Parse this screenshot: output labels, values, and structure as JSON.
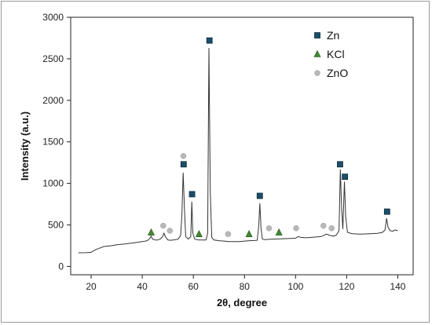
{
  "chart_data": {
    "type": "line",
    "title": "",
    "xlabel": "2θ, degree",
    "ylabel": "Intensity (a.u.)",
    "xlim": [
      12,
      146
    ],
    "ylim": [
      -100,
      3000
    ],
    "x_ticks": [
      20,
      40,
      60,
      80,
      100,
      120,
      140
    ],
    "y_ticks": [
      0,
      500,
      1000,
      1500,
      2000,
      2500,
      3000
    ],
    "x_tick_labels": [
      "20",
      "40",
      "60",
      "80",
      "100",
      "120",
      "140"
    ],
    "y_tick_labels": [
      "0",
      "500",
      "1000",
      "1500",
      "2000",
      "2500",
      "3000"
    ],
    "grid": false,
    "legend_position": "top-right",
    "line_color": "#333333",
    "pattern": [
      [
        15,
        165
      ],
      [
        18,
        166
      ],
      [
        20,
        170
      ],
      [
        22,
        205
      ],
      [
        25,
        240
      ],
      [
        28,
        250
      ],
      [
        30,
        262
      ],
      [
        33,
        270
      ],
      [
        35,
        278
      ],
      [
        38,
        290
      ],
      [
        40,
        300
      ],
      [
        41,
        304
      ],
      [
        42,
        310
      ],
      [
        43,
        340
      ],
      [
        43.5,
        365
      ],
      [
        44,
        330
      ],
      [
        45,
        320
      ],
      [
        46,
        318
      ],
      [
        47,
        330
      ],
      [
        48,
        360
      ],
      [
        48.5,
        400
      ],
      [
        49,
        360
      ],
      [
        50,
        320
      ],
      [
        51,
        315
      ],
      [
        52,
        318
      ],
      [
        53,
        322
      ],
      [
        54,
        330
      ],
      [
        54.5,
        350
      ],
      [
        55,
        370
      ],
      [
        55.5,
        600
      ],
      [
        56,
        1130
      ],
      [
        56.5,
        700
      ],
      [
        57,
        360
      ],
      [
        58,
        330
      ],
      [
        59,
        360
      ],
      [
        59.4,
        780
      ],
      [
        59.8,
        400
      ],
      [
        60.5,
        330
      ],
      [
        62,
        320
      ],
      [
        64,
        318
      ],
      [
        65,
        320
      ],
      [
        65.6,
        400
      ],
      [
        66.1,
        2630
      ],
      [
        66.6,
        900
      ],
      [
        67.2,
        350
      ],
      [
        68,
        320
      ],
      [
        70,
        310
      ],
      [
        72,
        305
      ],
      [
        74,
        300
      ],
      [
        76,
        300
      ],
      [
        78,
        300
      ],
      [
        80,
        305
      ],
      [
        82,
        310
      ],
      [
        84,
        312
      ],
      [
        85,
        315
      ],
      [
        85.6,
        500
      ],
      [
        86,
        760
      ],
      [
        86.5,
        450
      ],
      [
        87,
        330
      ],
      [
        88,
        322
      ],
      [
        90,
        328
      ],
      [
        92,
        330
      ],
      [
        94,
        332
      ],
      [
        96,
        335
      ],
      [
        98,
        338
      ],
      [
        100,
        340
      ],
      [
        101,
        360
      ],
      [
        102,
        350
      ],
      [
        104,
        345
      ],
      [
        106,
        350
      ],
      [
        108,
        355
      ],
      [
        110,
        360
      ],
      [
        111,
        372
      ],
      [
        112,
        390
      ],
      [
        113,
        378
      ],
      [
        114,
        370
      ],
      [
        115,
        365
      ],
      [
        116,
        380
      ],
      [
        117,
        430
      ],
      [
        117.5,
        1170
      ],
      [
        118,
        700
      ],
      [
        118.5,
        450
      ],
      [
        119.1,
        1020
      ],
      [
        119.6,
        600
      ],
      [
        120.3,
        410
      ],
      [
        122,
        395
      ],
      [
        125,
        390
      ],
      [
        128,
        392
      ],
      [
        130,
        395
      ],
      [
        132,
        398
      ],
      [
        134,
        410
      ],
      [
        135,
        440
      ],
      [
        135.6,
        580
      ],
      [
        136.2,
        470
      ],
      [
        137,
        430
      ],
      [
        138,
        425
      ],
      [
        139,
        440
      ],
      [
        140,
        430
      ]
    ],
    "series": [
      {
        "name": "Zn",
        "marker": "square",
        "color": "#1b4f6b",
        "points": [
          [
            56.2,
            1230
          ],
          [
            59.5,
            870
          ],
          [
            66.3,
            2720
          ],
          [
            86,
            850
          ],
          [
            117.4,
            1230
          ],
          [
            119.3,
            1080
          ],
          [
            135.8,
            660
          ]
        ]
      },
      {
        "name": "KCl",
        "marker": "triangle",
        "color": "#3f8a2e",
        "points": [
          [
            43.5,
            410
          ],
          [
            62.2,
            390
          ],
          [
            81.8,
            390
          ],
          [
            93.5,
            410
          ]
        ]
      },
      {
        "name": "ZnO",
        "marker": "circle",
        "color": "#b8b8b8",
        "points": [
          [
            48.2,
            490
          ],
          [
            50.8,
            430
          ],
          [
            56.1,
            1330
          ],
          [
            73.6,
            390
          ],
          [
            89.6,
            460
          ],
          [
            100.2,
            460
          ],
          [
            110.9,
            490
          ],
          [
            114.1,
            460
          ]
        ]
      }
    ]
  }
}
